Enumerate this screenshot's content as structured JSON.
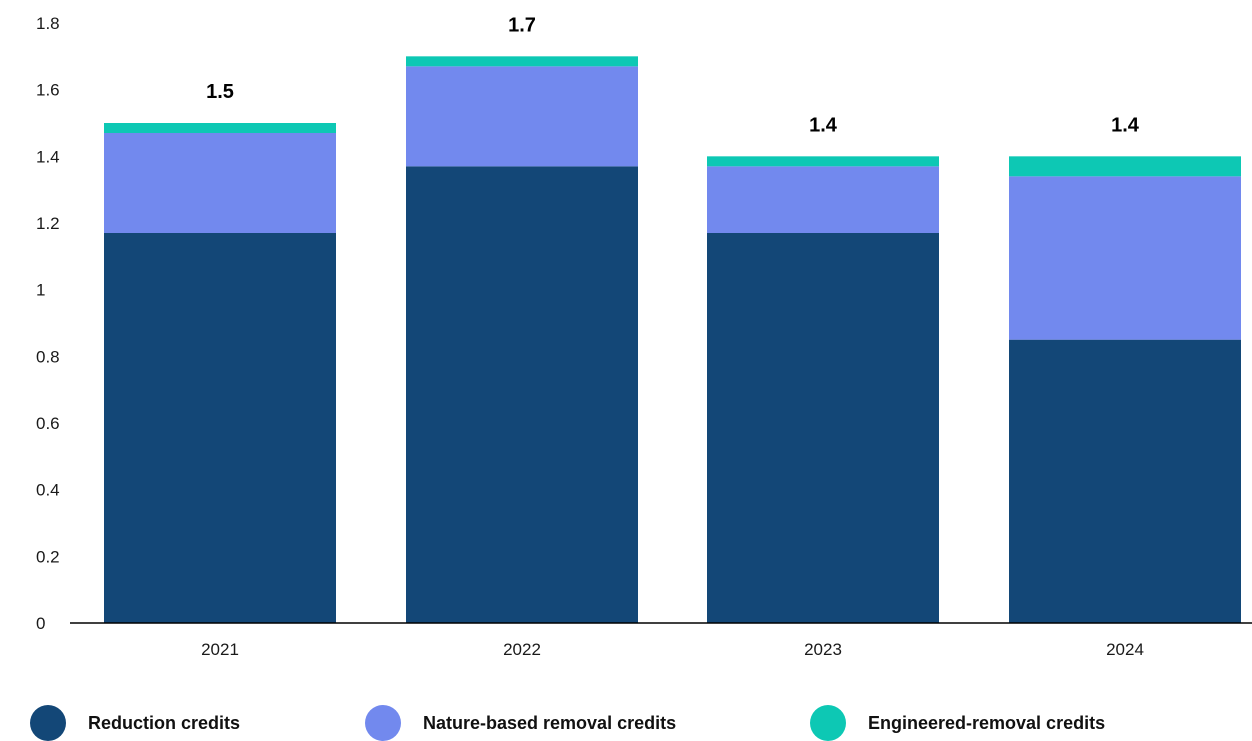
{
  "chart_data": {
    "type": "bar",
    "stacked": true,
    "categories": [
      "2021",
      "2022",
      "2023",
      "2024"
    ],
    "series": [
      {
        "name": "Reduction credits",
        "color": "#134777",
        "values": [
          1.17,
          1.37,
          1.17,
          0.85
        ]
      },
      {
        "name": "Nature-based removal credits",
        "color": "#7289ee",
        "values": [
          0.3,
          0.3,
          0.2,
          0.49
        ]
      },
      {
        "name": "Engineered-removal credits",
        "color": "#0dc8b4",
        "values": [
          0.03,
          0.03,
          0.03,
          0.06
        ]
      }
    ],
    "totals": [
      "1.5",
      "1.7",
      "1.4",
      "1.4"
    ],
    "yticks": [
      "0",
      "0.2",
      "0.4",
      "0.6",
      "0.8",
      "1",
      "1.2",
      "1.4",
      "1.6",
      "1.8"
    ],
    "ylim": [
      0,
      1.8
    ],
    "grid": false,
    "legend_position": "bottom"
  }
}
